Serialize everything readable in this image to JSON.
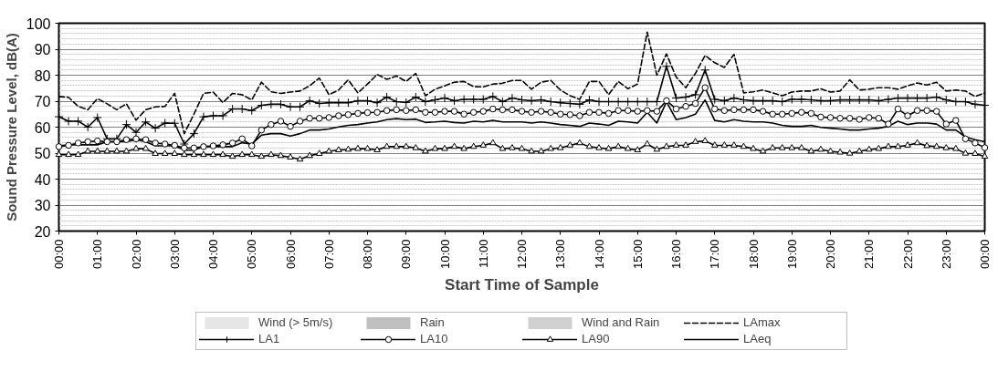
{
  "chart_data": {
    "type": "line",
    "xlabel": "Start Time of Sample",
    "ylabel": "Sound Pressure Level, dB(A)",
    "x": [
      0,
      0.25,
      0.5,
      0.75,
      1,
      1.25,
      1.5,
      1.75,
      2,
      2.25,
      2.5,
      2.75,
      3,
      3.25,
      3.5,
      3.75,
      4,
      4.25,
      4.5,
      4.75,
      5,
      5.25,
      5.5,
      5.75,
      6,
      6.25,
      6.5,
      6.75,
      7,
      7.25,
      7.5,
      7.75,
      8,
      8.25,
      8.5,
      8.75,
      9,
      9.25,
      9.5,
      9.75,
      10,
      10.25,
      10.5,
      10.75,
      11,
      11.25,
      11.5,
      11.75,
      12,
      12.25,
      12.5,
      12.75,
      13,
      13.25,
      13.5,
      13.75,
      14,
      14.25,
      14.5,
      14.75,
      15,
      15.25,
      15.5,
      15.75,
      16,
      16.25,
      16.5,
      16.75,
      17,
      17.25,
      17.5,
      17.75,
      18,
      18.25,
      18.5,
      18.75,
      19,
      19.25,
      19.5,
      19.75,
      20,
      20.25,
      20.5,
      20.75,
      21,
      21.25,
      21.5,
      21.75,
      22,
      22.25,
      22.5,
      22.75,
      23,
      23.25,
      23.5,
      23.75,
      24
    ],
    "xlim": [
      0,
      24
    ],
    "xticks": [
      {
        "value": 0,
        "label": "00:00"
      },
      {
        "value": 1,
        "label": "01:00"
      },
      {
        "value": 2,
        "label": "02:00"
      },
      {
        "value": 3,
        "label": "03:00"
      },
      {
        "value": 4,
        "label": "04:00"
      },
      {
        "value": 5,
        "label": "05:00"
      },
      {
        "value": 6,
        "label": "06:00"
      },
      {
        "value": 7,
        "label": "07:00"
      },
      {
        "value": 8,
        "label": "08:00"
      },
      {
        "value": 9,
        "label": "09:00"
      },
      {
        "value": 10,
        "label": "10:00"
      },
      {
        "value": 11,
        "label": "11:00"
      },
      {
        "value": 12,
        "label": "12:00"
      },
      {
        "value": 13,
        "label": "13:00"
      },
      {
        "value": 14,
        "label": "14:00"
      },
      {
        "value": 15,
        "label": "15:00"
      },
      {
        "value": 16,
        "label": "16:00"
      },
      {
        "value": 17,
        "label": "17:00"
      },
      {
        "value": 18,
        "label": "18:00"
      },
      {
        "value": 19,
        "label": "19:00"
      },
      {
        "value": 20,
        "label": "20:00"
      },
      {
        "value": 21,
        "label": "21:00"
      },
      {
        "value": 22,
        "label": "22:00"
      },
      {
        "value": 23,
        "label": "23:00"
      },
      {
        "value": 24,
        "label": "00:00"
      }
    ],
    "ylim": [
      20,
      100
    ],
    "yticks": [
      20,
      30,
      40,
      50,
      60,
      70,
      80,
      90,
      100
    ],
    "grid": "y",
    "legend": "bottom",
    "series": [
      {
        "name": "Wind (> 5m/s)",
        "type": "bar",
        "color": "#e6e6e6",
        "values": [
          null,
          null,
          null,
          null,
          null,
          null,
          null,
          null,
          null,
          null,
          null,
          null,
          null,
          null,
          null,
          null,
          null,
          null,
          null,
          null,
          null,
          null,
          null,
          null,
          null,
          null,
          null,
          null,
          null,
          null,
          null,
          null,
          null,
          null,
          null,
          null,
          null,
          null,
          null,
          null,
          null,
          null,
          null,
          null,
          null,
          null,
          null,
          null,
          null,
          null,
          null,
          null,
          null,
          null,
          null,
          null,
          null,
          null,
          null,
          null,
          null,
          null,
          null,
          null,
          null,
          null,
          null,
          null,
          null,
          null,
          null,
          null,
          null,
          null,
          null,
          null,
          null,
          null,
          null,
          null,
          null,
          null,
          null,
          null,
          null,
          null,
          null,
          null,
          null,
          null,
          null,
          null,
          null,
          null,
          null,
          null,
          null
        ]
      },
      {
        "name": "Rain",
        "type": "bar",
        "color": "#c0c0c0",
        "values": [
          null,
          null,
          null,
          null,
          null,
          null,
          null,
          null,
          null,
          null,
          null,
          null,
          null,
          null,
          null,
          null,
          null,
          null,
          null,
          null,
          null,
          null,
          null,
          null,
          null,
          null,
          null,
          null,
          null,
          null,
          null,
          null,
          null,
          null,
          null,
          null,
          null,
          null,
          null,
          null,
          null,
          null,
          null,
          null,
          null,
          null,
          null,
          null,
          null,
          null,
          null,
          null,
          null,
          null,
          null,
          null,
          null,
          null,
          null,
          null,
          null,
          null,
          null,
          null,
          null,
          null,
          null,
          null,
          null,
          null,
          null,
          null,
          null,
          null,
          null,
          null,
          null,
          null,
          null,
          null,
          null,
          null,
          null,
          null,
          null,
          null,
          null,
          null,
          null,
          null,
          null,
          null,
          null,
          null,
          null,
          null,
          null
        ]
      },
      {
        "name": "Wind and Rain",
        "type": "bar",
        "color": "#d0d0d0",
        "values": [
          null,
          null,
          null,
          null,
          null,
          null,
          null,
          null,
          null,
          null,
          null,
          null,
          null,
          null,
          null,
          null,
          null,
          null,
          null,
          null,
          null,
          null,
          null,
          null,
          null,
          null,
          null,
          null,
          null,
          null,
          null,
          null,
          null,
          null,
          null,
          null,
          null,
          null,
          null,
          null,
          null,
          null,
          null,
          null,
          null,
          null,
          null,
          null,
          null,
          null,
          null,
          null,
          null,
          null,
          null,
          null,
          null,
          null,
          null,
          null,
          null,
          null,
          null,
          null,
          null,
          null,
          null,
          null,
          null,
          null,
          null,
          null,
          null,
          null,
          null,
          null,
          null,
          null,
          null,
          null,
          null,
          null,
          null,
          null,
          null,
          null,
          null,
          null,
          null,
          null,
          null,
          null,
          null,
          null,
          null,
          null,
          null
        ]
      },
      {
        "name": "LAmax",
        "color": "#000000",
        "marker": "none",
        "line_style": "dashed",
        "values": [
          71.8,
          71.5,
          68,
          66.7,
          71,
          69,
          66.7,
          69,
          62.7,
          66.7,
          67.8,
          68,
          73,
          57.5,
          65,
          73,
          73.5,
          69.5,
          73,
          72.5,
          70.5,
          77.3,
          73.6,
          73,
          73.5,
          73.9,
          75.9,
          78.9,
          72.5,
          74.3,
          78.2,
          73.2,
          76.6,
          80.3,
          78.4,
          79.7,
          77.6,
          80.7,
          72.1,
          74.6,
          75.9,
          77.3,
          77.6,
          75.6,
          75.5,
          76.6,
          76.9,
          78,
          78,
          74.6,
          77.3,
          78,
          74.3,
          72.1,
          70.7,
          77.6,
          77.6,
          72.5,
          77.6,
          74.8,
          76.6,
          96.6,
          80,
          88.2,
          79.3,
          75.2,
          80.7,
          87.6,
          84.8,
          83,
          88,
          73.2,
          73.6,
          74.3,
          73.2,
          72.1,
          73.5,
          73.9,
          73.9,
          74.8,
          73.5,
          73.9,
          78.2,
          74.3,
          74.6,
          75.2,
          75.2,
          74.6,
          75.9,
          77,
          76.2,
          77.3,
          73.9,
          74.3,
          73.9,
          71.8,
          73.2
        ]
      },
      {
        "name": "LA1",
        "color": "#000000",
        "marker": "cross",
        "line_style": "solid",
        "values": [
          64,
          62.3,
          62.3,
          60,
          63.7,
          55.5,
          55.5,
          61,
          58,
          62,
          59.6,
          61.6,
          61.5,
          53.5,
          57.5,
          64,
          64.4,
          64.4,
          67,
          67,
          66.4,
          68.4,
          68.8,
          68.8,
          67.8,
          67.8,
          70.2,
          69.1,
          69.4,
          69.4,
          69.4,
          70.2,
          70.2,
          69.4,
          71.6,
          69.8,
          69.5,
          71.6,
          69.8,
          70.5,
          71.2,
          70.2,
          70.7,
          70.7,
          70.7,
          71.8,
          69.8,
          71.2,
          70.5,
          70.2,
          70.5,
          69.8,
          69.4,
          69.1,
          68.8,
          70.5,
          69.8,
          69.8,
          69.8,
          69.8,
          69.8,
          69.8,
          69.8,
          83.4,
          71.2,
          71.6,
          72.5,
          82,
          70.7,
          70.2,
          71.2,
          70.5,
          70.2,
          70.2,
          70.2,
          69.8,
          70.7,
          70.7,
          70.5,
          70.2,
          70.2,
          70.5,
          70.5,
          70.5,
          70.5,
          70.2,
          70.7,
          71.2,
          71.2,
          71.2,
          71.2,
          71.6,
          70.5,
          69.8,
          69.8,
          68.8,
          68.4
        ]
      },
      {
        "name": "LA10",
        "color": "#000000",
        "marker": "circle",
        "line_style": "solid",
        "values": [
          52.5,
          53,
          53.9,
          54.4,
          54.7,
          54.4,
          54.4,
          55.2,
          55.5,
          55.2,
          53.9,
          53.5,
          53,
          52,
          52,
          52.5,
          52.8,
          53.2,
          53.9,
          55.5,
          52.8,
          58.9,
          61,
          62.3,
          60.3,
          62.3,
          63.4,
          63.4,
          63.7,
          64.4,
          64.8,
          65.3,
          65.6,
          65.7,
          66.4,
          66.7,
          66.4,
          66.7,
          65.7,
          65.7,
          66.1,
          66.1,
          65,
          65.7,
          66.1,
          67,
          66.7,
          66.7,
          66.1,
          65.7,
          66.1,
          65.7,
          65,
          64.8,
          64.4,
          65.7,
          65.7,
          65.3,
          66.4,
          66.4,
          66.1,
          66.4,
          66.1,
          70.2,
          67,
          68,
          69.1,
          75.2,
          67,
          66.4,
          66.7,
          66.7,
          66.7,
          66.1,
          65,
          65,
          65.3,
          65.7,
          65.3,
          63.9,
          63.7,
          63.4,
          63.4,
          63,
          63.7,
          63.4,
          61.2,
          67,
          64.4,
          66.4,
          66.4,
          66.1,
          61.2,
          62.6,
          55.5,
          53.9,
          52.1
        ]
      },
      {
        "name": "LA90",
        "color": "#000000",
        "marker": "triangle",
        "line_style": "solid",
        "values": [
          49.4,
          49.4,
          49.4,
          50.7,
          50.7,
          50.7,
          50.7,
          50.7,
          51.7,
          51.7,
          49.8,
          49.8,
          49.8,
          49.4,
          49.4,
          49.4,
          49.4,
          49.4,
          48.7,
          49.4,
          49.4,
          48.7,
          49.4,
          49,
          48.4,
          47.6,
          49,
          49.8,
          50.7,
          51.2,
          51.4,
          51.7,
          51.7,
          51.2,
          52.5,
          52.5,
          52.5,
          52,
          50.7,
          51.7,
          51.7,
          52.5,
          51.7,
          52.5,
          53,
          53.9,
          51.7,
          52,
          51.7,
          50.7,
          50.7,
          51.7,
          52,
          53,
          53.9,
          52.5,
          52,
          51.7,
          52.5,
          51.7,
          51.2,
          53.5,
          51.4,
          52.5,
          53,
          53,
          54.4,
          54.7,
          53,
          53,
          53,
          52.5,
          51.7,
          50.7,
          52,
          52,
          52,
          52,
          50.7,
          51.4,
          50.7,
          50.3,
          49.9,
          50.7,
          51.4,
          51.7,
          52.5,
          52.5,
          53,
          53.9,
          52.8,
          52.5,
          52,
          51.7,
          49.9,
          49.8,
          48.7
        ]
      },
      {
        "name": "LAeq",
        "color": "#000000",
        "marker": "none",
        "line_style": "solid",
        "values": [
          52.8,
          53.2,
          53.2,
          53.2,
          53.2,
          54.4,
          54.4,
          54.4,
          55.2,
          54.4,
          52.8,
          52.8,
          52.8,
          51.2,
          51.2,
          52.5,
          52.5,
          52.5,
          52.5,
          54,
          53.5,
          56.9,
          57.5,
          57.5,
          56.6,
          57.5,
          58.9,
          58.9,
          59.3,
          60.1,
          60.7,
          61,
          61.6,
          62,
          62.9,
          63.3,
          62.9,
          63.1,
          61.8,
          62,
          62.3,
          61.8,
          61.6,
          62.3,
          62,
          62.6,
          62,
          62,
          62,
          61.6,
          62,
          61.6,
          61,
          60.7,
          60.3,
          61.6,
          61.2,
          60.7,
          62.3,
          62,
          61.6,
          65.7,
          61.6,
          69.8,
          62.9,
          63.7,
          65,
          70.5,
          62.6,
          62,
          62.9,
          62.3,
          62,
          62,
          61.6,
          60.7,
          60.3,
          60.3,
          60.7,
          59.9,
          59.6,
          59.3,
          58.9,
          58.9,
          59.3,
          59.6,
          60.3,
          62.3,
          61,
          61.6,
          61.6,
          61.2,
          58.9,
          58.9,
          56.2,
          55.2,
          54.4
        ]
      }
    ]
  }
}
